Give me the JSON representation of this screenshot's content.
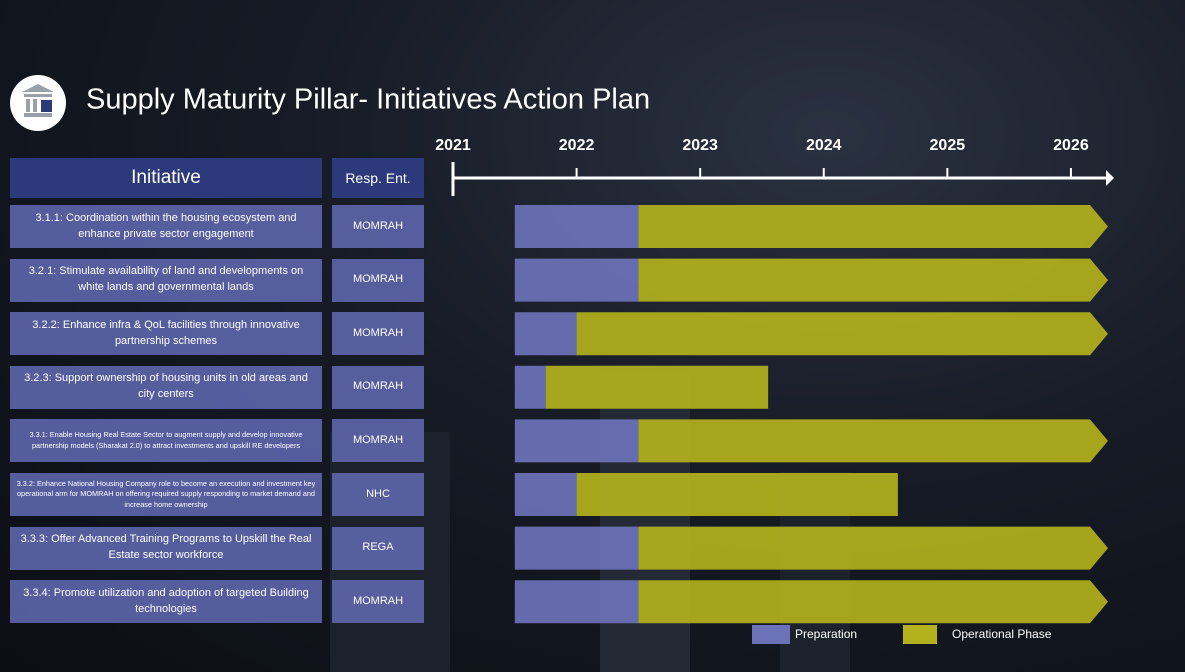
{
  "chart_data": {
    "type": "gantt",
    "title": "Supply Maturity Pillar- Initiatives Action Plan",
    "headers": {
      "initiative": "Initiative",
      "entity": "Resp. Ent."
    },
    "categories": [
      "3.1.1: Coordination within the housing ecosystem and enhance private sector engagement",
      "3.2.1: Stimulate availability of land and developments on white lands and governmental lands",
      "3.2.2: Enhance infra & QoL facilities through innovative partnership schemes",
      "3.2.3: Support ownership of housing units in old areas and city centers",
      "3.3.1: Enable Housing Real Estate Sector to augment supply and develop innovative partnership models (Sharakat 2.0) to attract investments and upskill RE developers",
      "3.3.2: Enhance National Housing Company role to become an execution and investment key operational arm for MOMRAH on offering required supply responding to market demand and increase home ownership",
      "3.3.3: Offer Advanced Training Programs to Upskill the Real Estate sector workforce",
      "3.3.4: Promote utilization and adoption of targeted Building technologies"
    ],
    "entities": [
      "MOMRAH",
      "MOMRAH",
      "MOMRAH",
      "MOMRAH",
      "MOMRAH",
      "NHC",
      "REGA",
      "MOMRAH"
    ],
    "series": [
      {
        "name": "Preparation",
        "color": "#6c72b8",
        "start": [
          2021.5,
          2021.5,
          2021.5,
          2021.5,
          2021.5,
          2021.5,
          2021.5,
          2021.5
        ],
        "end": [
          2022.5,
          2022.5,
          2022,
          2021.75,
          2022.5,
          2022,
          2022.5,
          2022.5
        ]
      },
      {
        "name": "Operational Phase",
        "color": "#b3b11c",
        "start": [
          2022.5,
          2022.5,
          2022,
          2021.75,
          2022.5,
          2022,
          2022.5,
          2022.5
        ],
        "end": [
          2026.3,
          2026.3,
          2026.3,
          2023.55,
          2026.3,
          2024.6,
          2026.3,
          2026.3
        ]
      }
    ],
    "xlim": [
      2021,
      2026.3
    ],
    "xticks": [
      2021,
      2022,
      2023,
      2024,
      2025,
      2026
    ]
  }
}
